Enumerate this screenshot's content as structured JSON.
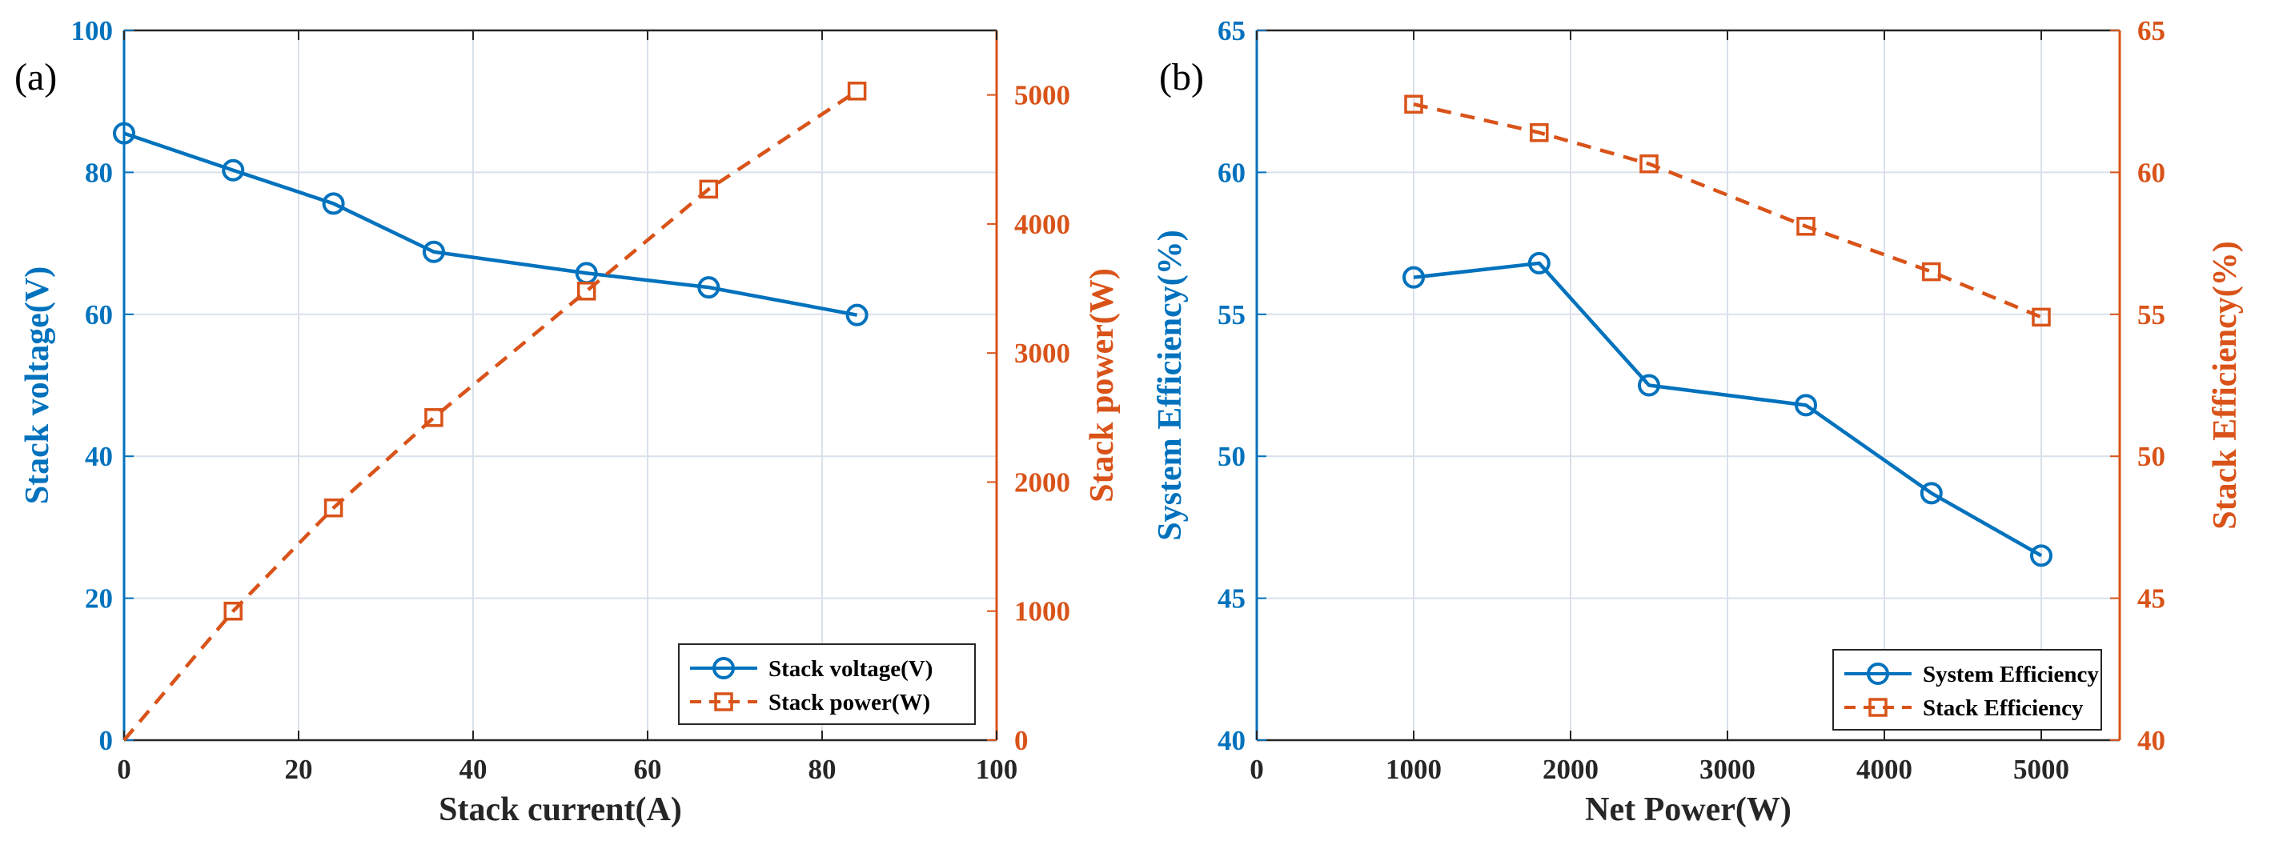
{
  "colors": {
    "left": "#0072bd",
    "right": "#d95319",
    "axis": "#262626"
  },
  "chart_data": [
    {
      "type": "line",
      "panel_label": "(a)",
      "xlabel": "Stack current(A)",
      "ylabel_left": "Stack voltage(V)",
      "ylabel_right": "Stack power(W)",
      "xlim": [
        0,
        100
      ],
      "ylim_left": [
        0,
        100
      ],
      "ylim_right": [
        0,
        5500
      ],
      "x_ticks": [
        0,
        20,
        40,
        60,
        80,
        100
      ],
      "y_ticks_left": [
        0,
        20,
        40,
        60,
        80,
        100
      ],
      "y_ticks_right": [
        0,
        1000,
        2000,
        3000,
        4000,
        5000
      ],
      "grid": true,
      "legend_position": "bottom-right",
      "series": [
        {
          "name": "Stack voltage(V)",
          "axis": "left",
          "marker": "circle",
          "style": "solid",
          "x": [
            0,
            12.5,
            24,
            35.5,
            53,
            67,
            84
          ],
          "y": [
            85.5,
            80.3,
            75.6,
            68.8,
            65.8,
            63.8,
            59.9
          ]
        },
        {
          "name": "Stack power(W)",
          "axis": "right",
          "marker": "square",
          "style": "dashed",
          "x": [
            0,
            12.5,
            24,
            35.5,
            53,
            67,
            84
          ],
          "y": [
            0,
            1000,
            1800,
            2500,
            3480,
            4270,
            5030
          ]
        }
      ]
    },
    {
      "type": "line",
      "panel_label": "(b)",
      "xlabel": "Net Power(W)",
      "ylabel_left": "System Efficiency(%)",
      "ylabel_right": "Stack Efficiency(%)",
      "xlim": [
        0,
        5500
      ],
      "ylim_left": [
        40,
        65
      ],
      "ylim_right": [
        40,
        65
      ],
      "x_ticks": [
        0,
        1000,
        2000,
        3000,
        4000,
        5000
      ],
      "y_ticks_left": [
        40,
        45,
        50,
        55,
        60,
        65
      ],
      "y_ticks_right": [
        40,
        45,
        50,
        55,
        60,
        65
      ],
      "grid": true,
      "legend_position": "bottom-right",
      "series": [
        {
          "name": "System Efficiency",
          "axis": "left",
          "marker": "circle",
          "style": "solid",
          "x": [
            1000,
            1800,
            2500,
            3500,
            4300,
            5000
          ],
          "y": [
            56.3,
            56.8,
            52.5,
            51.8,
            48.7,
            46.5
          ]
        },
        {
          "name": "Stack Efficiency",
          "axis": "right",
          "marker": "square",
          "style": "dashed",
          "x": [
            1000,
            1800,
            2500,
            3500,
            4300,
            5000
          ],
          "y": [
            62.4,
            61.4,
            60.3,
            58.1,
            56.5,
            54.9
          ]
        }
      ]
    }
  ]
}
